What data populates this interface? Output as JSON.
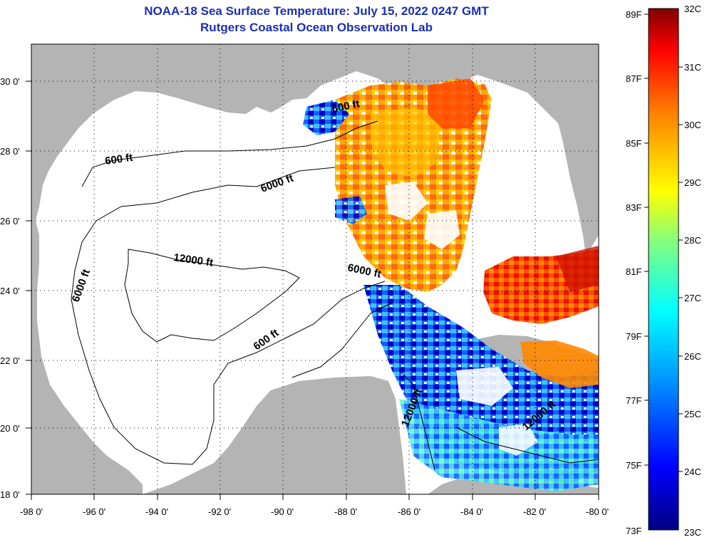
{
  "title": "NOAA-18 Sea Surface Temperature:  July 15, 2022 0247 GMT",
  "subtitle": "Rutgers Coastal Ocean Observation Lab",
  "map": {
    "lon_range": [
      -98,
      -80
    ],
    "lat_range": [
      18,
      31
    ],
    "lon_ticks": [
      "-98 0'",
      "-96 0'",
      "-94 0'",
      "-92 0'",
      "-90 0'",
      "-88 0'",
      "-86 0'",
      "-84 0'",
      "-82 0'",
      "-80 0'"
    ],
    "lat_ticks": [
      "30 0'",
      "28 0'",
      "26 0'",
      "24 0'",
      "22 0'",
      "20 0'",
      "18 0'"
    ],
    "grid": "dotted",
    "land_color": "#b4b4b4",
    "no_data_color": "#ffffff"
  },
  "contour_labels": [
    "600 ft",
    "600 ft",
    "6000 ft",
    "12000 ft",
    "6000 ft",
    "6000 ft",
    "600 ft",
    "12000 ft",
    "12000 ft"
  ],
  "colorbar": {
    "celsius_labels": [
      "32C",
      "31C",
      "30C",
      "29C",
      "28C",
      "27C",
      "26C",
      "25C",
      "24C",
      "23C"
    ],
    "fahrenheit_labels": [
      "89F",
      "87F",
      "85F",
      "83F",
      "81F",
      "79F",
      "77F",
      "75F",
      "73F"
    ],
    "range_c": [
      23,
      32
    ],
    "colormap": [
      "#000080",
      "#0000ff",
      "#00a0ff",
      "#00ffff",
      "#80ff80",
      "#ffff00",
      "#ff8000",
      "#ff0000",
      "#800000"
    ]
  }
}
